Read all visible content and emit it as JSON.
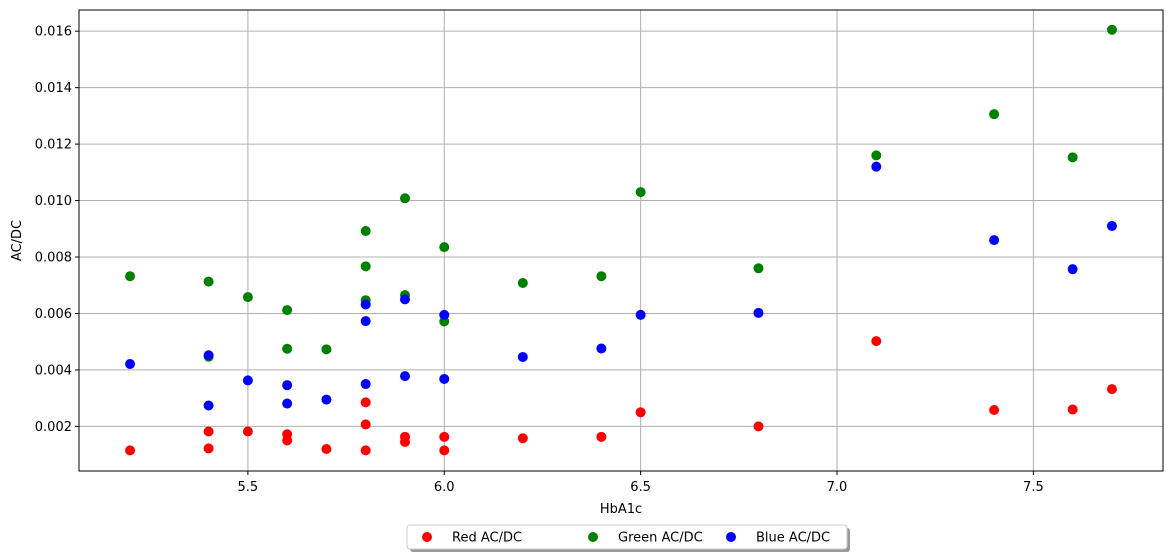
{
  "chart_data": {
    "type": "scatter",
    "title": "",
    "xlabel": "HbA1c",
    "ylabel": "AC/DC",
    "xlim": [
      5.07,
      7.83
    ],
    "ylim": [
      0.00042,
      0.01675
    ],
    "xticks": [
      5.5,
      6.0,
      6.5,
      7.0,
      7.5
    ],
    "xtick_labels": [
      "5.5",
      "6.0",
      "6.5",
      "7.0",
      "7.5"
    ],
    "yticks": [
      0.002,
      0.004,
      0.006,
      0.008,
      0.01,
      0.012,
      0.014,
      0.016
    ],
    "ytick_labels": [
      "0.002",
      "0.004",
      "0.006",
      "0.008",
      "0.010",
      "0.012",
      "0.014",
      "0.016"
    ],
    "grid": true,
    "legend_position": "bottom-center",
    "series": [
      {
        "name": "Red AC/DC",
        "color": "#ff0000",
        "points": [
          [
            5.2,
            0.00115
          ],
          [
            5.4,
            0.00182
          ],
          [
            5.4,
            0.00122
          ],
          [
            5.5,
            0.00182
          ],
          [
            5.6,
            0.00172
          ],
          [
            5.6,
            0.0015
          ],
          [
            5.7,
            0.0012
          ],
          [
            5.8,
            0.00285
          ],
          [
            5.8,
            0.00207
          ],
          [
            5.8,
            0.00115
          ],
          [
            5.9,
            0.00163
          ],
          [
            5.9,
            0.00145
          ],
          [
            6.0,
            0.00163
          ],
          [
            6.0,
            0.00115
          ],
          [
            6.2,
            0.00158
          ],
          [
            6.4,
            0.00163
          ],
          [
            6.5,
            0.0025
          ],
          [
            6.8,
            0.002
          ],
          [
            7.1,
            0.00502
          ],
          [
            7.4,
            0.00258
          ],
          [
            7.6,
            0.0026
          ],
          [
            7.7,
            0.00332
          ]
        ]
      },
      {
        "name": "Green AC/DC",
        "color": "#008000",
        "points": [
          [
            5.2,
            0.00732
          ],
          [
            5.4,
            0.00713
          ],
          [
            5.4,
            0.00447
          ],
          [
            5.5,
            0.00658
          ],
          [
            5.6,
            0.00612
          ],
          [
            5.6,
            0.00475
          ],
          [
            5.7,
            0.00473
          ],
          [
            5.8,
            0.00892
          ],
          [
            5.8,
            0.00767
          ],
          [
            5.8,
            0.00647
          ],
          [
            5.9,
            0.01008
          ],
          [
            5.9,
            0.00665
          ],
          [
            6.0,
            0.00835
          ],
          [
            6.0,
            0.00572
          ],
          [
            6.2,
            0.00708
          ],
          [
            6.4,
            0.00732
          ],
          [
            6.5,
            0.0103
          ],
          [
            6.8,
            0.0076
          ],
          [
            7.1,
            0.0116
          ],
          [
            7.4,
            0.01306
          ],
          [
            7.6,
            0.01153
          ],
          [
            7.7,
            0.01605
          ]
        ]
      },
      {
        "name": "Blue AC/DC",
        "color": "#0000ff",
        "points": [
          [
            5.2,
            0.00421
          ],
          [
            5.4,
            0.00452
          ],
          [
            5.4,
            0.00274
          ],
          [
            5.5,
            0.00363
          ],
          [
            5.6,
            0.00346
          ],
          [
            5.6,
            0.00281
          ],
          [
            5.7,
            0.00295
          ],
          [
            5.8,
            0.00632
          ],
          [
            5.8,
            0.00573
          ],
          [
            5.8,
            0.0035
          ],
          [
            5.9,
            0.0065
          ],
          [
            5.9,
            0.00378
          ],
          [
            6.0,
            0.00595
          ],
          [
            6.0,
            0.00368
          ],
          [
            6.2,
            0.00446
          ],
          [
            6.4,
            0.00476
          ],
          [
            6.5,
            0.00595
          ],
          [
            6.8,
            0.00602
          ],
          [
            7.1,
            0.0112
          ],
          [
            7.4,
            0.0086
          ],
          [
            7.6,
            0.00757
          ],
          [
            7.7,
            0.0091
          ]
        ]
      }
    ]
  }
}
